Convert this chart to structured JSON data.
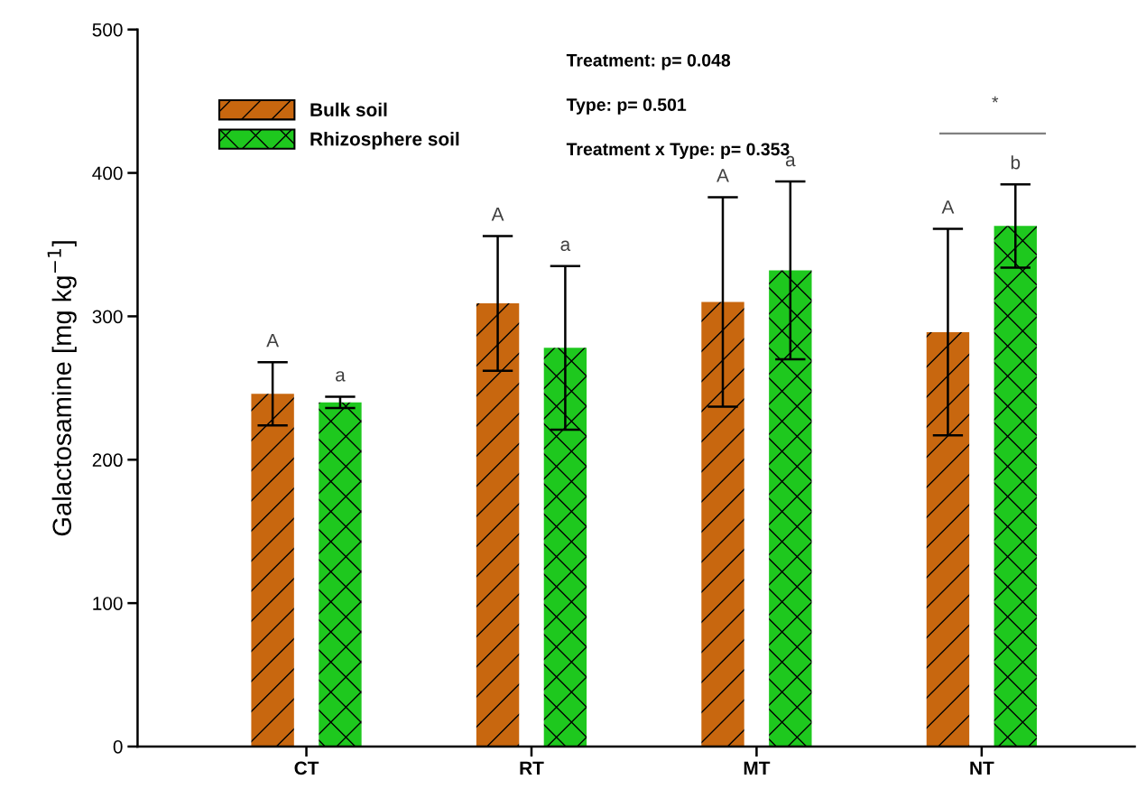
{
  "chart_data": {
    "type": "bar",
    "ylabel": "Galactosamine [mg kg$^{−1}$]",
    "categories": [
      "CT",
      "RT",
      "MT",
      "NT"
    ],
    "series": [
      {
        "name": "Bulk soil",
        "color": "#c8670f",
        "values": [
          246,
          309,
          310,
          289
        ],
        "errors": [
          22,
          47,
          73,
          72
        ]
      },
      {
        "name": "Rhizosphere soil",
        "color": "#1ec81e",
        "values": [
          240,
          278,
          332,
          363
        ],
        "errors": [
          4,
          57,
          62,
          29
        ]
      }
    ],
    "ylim": [
      0,
      500
    ],
    "yticks": [
      0,
      100,
      200,
      300,
      400,
      500
    ],
    "annotations": [
      "Treatment: p= 0.048",
      "Type: p= 0.501",
      "Treatment x Type: p= 0.353",
      "*",
      "A",
      "A",
      "A",
      "A",
      "a",
      "a",
      "a",
      "b"
    ],
    "legend": "top left",
    "grid": false
  }
}
